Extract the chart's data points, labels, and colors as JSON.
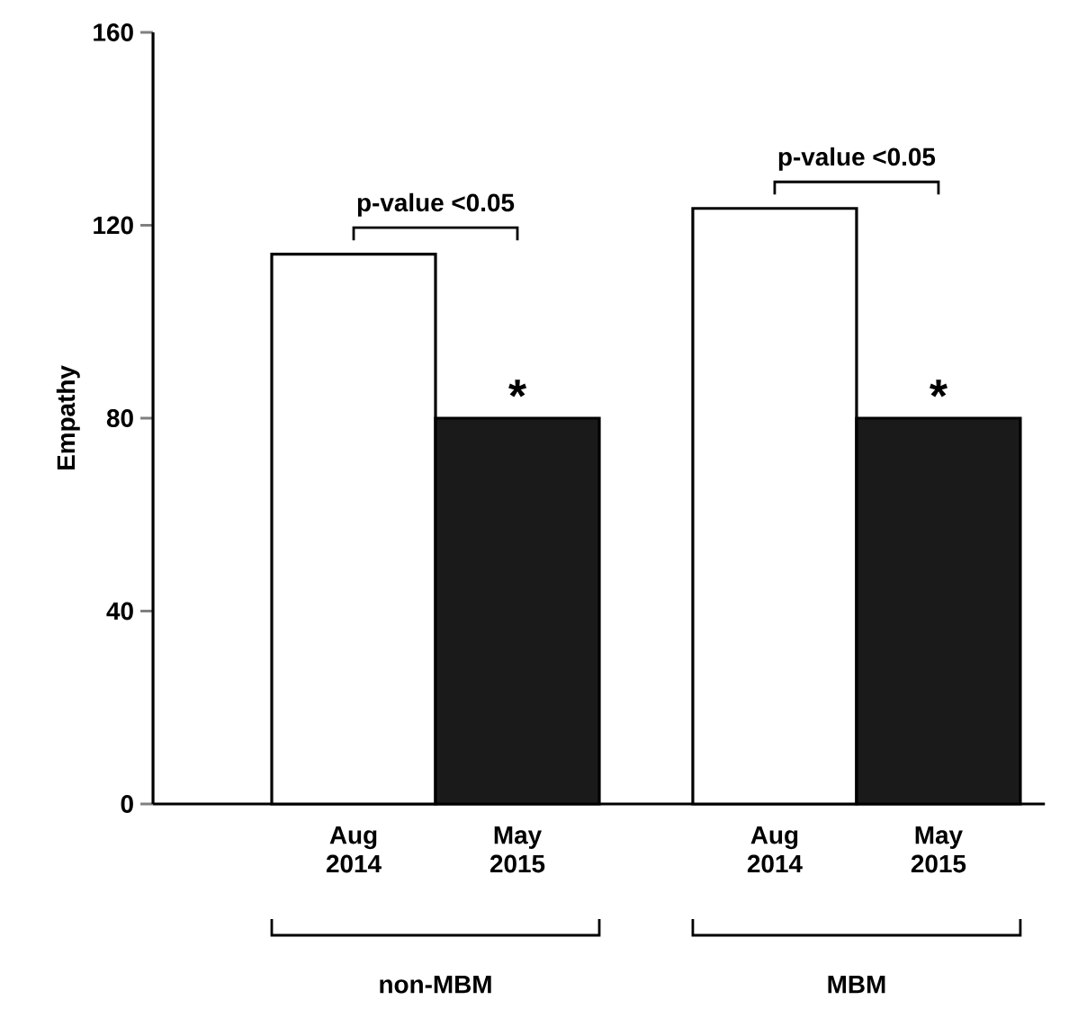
{
  "chart_data": {
    "type": "bar",
    "categories": [
      "Aug 2014",
      "May 2015",
      "Aug 2014",
      "May 2015"
    ],
    "values": [
      114,
      80,
      123.5,
      80
    ],
    "colors": [
      "#ffffff",
      "#1a1a1a",
      "#ffffff",
      "#1a1a1a"
    ],
    "ylabel": "Empathy",
    "ylim": [
      0,
      160
    ],
    "yticks": [
      0,
      40,
      80,
      120,
      160
    ],
    "annotations": [
      "p-value <0.05",
      "p-value <0.05",
      "*",
      "*",
      "non-MBM",
      "MBM"
    ]
  }
}
